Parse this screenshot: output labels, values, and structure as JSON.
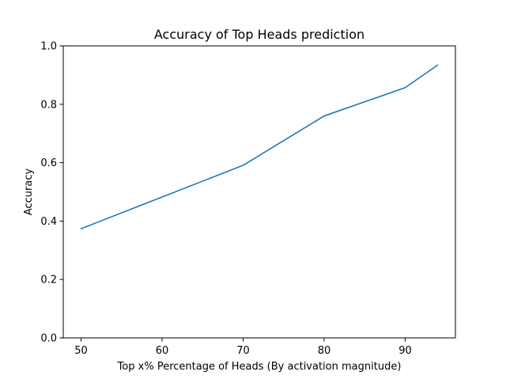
{
  "chart_data": {
    "type": "line",
    "title": "Accuracy of Top Heads prediction",
    "xlabel": "Top x% Percentage of Heads (By activation magnitude)",
    "ylabel": "Accuracy",
    "xlim": [
      47.8,
      96.2
    ],
    "ylim": [
      0.0,
      1.0
    ],
    "xticks": [
      50,
      60,
      70,
      80,
      90
    ],
    "xtick_labels": [
      "50",
      "60",
      "70",
      "80",
      "90"
    ],
    "yticks": [
      0.0,
      0.2,
      0.4,
      0.6,
      0.8,
      1.0
    ],
    "ytick_labels": [
      "0.0",
      "0.2",
      "0.4",
      "0.6",
      "0.8",
      "1.0"
    ],
    "grid": false,
    "series": [
      {
        "color": "#1f77b4",
        "x": [
          50,
          70,
          80,
          90,
          94
        ],
        "y": [
          0.374,
          0.591,
          0.76,
          0.857,
          0.934
        ]
      }
    ]
  }
}
